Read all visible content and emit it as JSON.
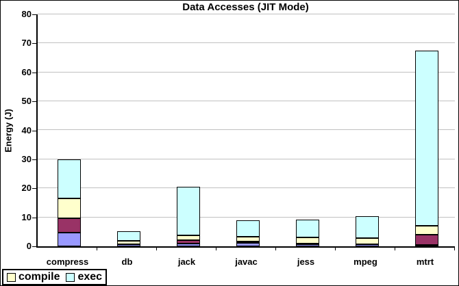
{
  "title": "Data Accesses (JIT Mode)",
  "y_axis": {
    "label": "Energy (J)",
    "tick_labels": [
      "0",
      "10",
      "20",
      "30",
      "40",
      "50",
      "60",
      "70",
      "80"
    ],
    "min": 0,
    "max": 80,
    "step": 10
  },
  "x_axis": {
    "categories": [
      "compress",
      "db",
      "jack",
      "javac",
      "jess",
      "mpeg",
      "mtrt"
    ]
  },
  "legend": {
    "items": [
      {
        "label": "compile",
        "color": "#FFFFCC"
      },
      {
        "label": "exec",
        "color": "#CCFFFF"
      }
    ]
  },
  "colors": {
    "gridline": "#C0C0C0",
    "axis": "#000000",
    "bar_border": "#000000",
    "background": "#FFFFFF"
  },
  "chart_data": {
    "type": "bar",
    "stacked": true,
    "title": "Data Accesses (JIT Mode)",
    "xlabel": "",
    "ylabel": "Energy (J)",
    "ylim": [
      0,
      80
    ],
    "grid": true,
    "legend_position": "bottom-left",
    "categories": [
      "compress",
      "db",
      "jack",
      "javac",
      "jess",
      "mpeg",
      "mtrt"
    ],
    "series": [
      {
        "name": "unlabeled-purple",
        "in_legend": false,
        "color": "#9999FF",
        "values": [
          4.8,
          0.6,
          1.0,
          1.2,
          0.7,
          0.7,
          0.5
        ]
      },
      {
        "name": "unlabeled-maroon",
        "in_legend": false,
        "color": "#993366",
        "values": [
          4.8,
          0.1,
          1.2,
          0.5,
          0.3,
          0.1,
          3.4
        ]
      },
      {
        "name": "compile",
        "in_legend": true,
        "color": "#FFFFCC",
        "values": [
          6.9,
          1.3,
          1.6,
          1.6,
          2.1,
          2.0,
          3.1
        ]
      },
      {
        "name": "exec",
        "in_legend": true,
        "color": "#CCFFFF",
        "values": [
          13.5,
          3.3,
          16.7,
          5.7,
          6.2,
          7.7,
          60.5
        ]
      }
    ],
    "totals": [
      30.0,
      5.3,
      20.5,
      9.0,
      9.3,
      10.5,
      67.5
    ]
  }
}
